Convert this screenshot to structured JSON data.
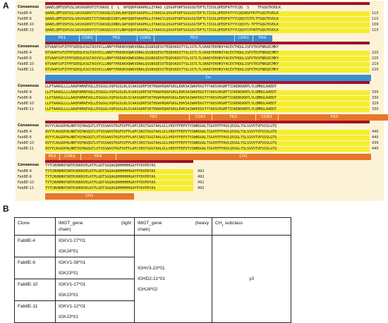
{
  "panelA": {
    "label": "A",
    "consensus_label": "Consensus",
    "blocks": [
      {
        "consensus_seq": "QAAELQMTQSPSSLSASVGDRVTITCRASQ I  L  WYQQKPGKAPKLLIYAAS LQSGVPSRFSGSGSGTDFTLTISSLQPEDFATYYCQQ  S    TFGQGTKVDLK",
        "rows": [
          {
            "name": "Fab8E-4",
            "seq": "QAAELQMTQSPSSLSASVGDRVTITCRASQGISSWLAWYQQKPGKAPKLLIYAASSLQSGVPSRFSGSGSGTDFTLTISSLQPEDFATYYCQQSNSFPRTFGQGTKVDLK",
            "num": "110"
          },
          {
            "name": "Fab8E-6",
            "seq": "QAAELQMTQSPSSLSASVGDRITITCRASQDISNYLAWYQQKPGKAPKLLIYAASTLQSGVPSRFSGSGSGTDFTLTISSLQPEDFATYYCQQSYSTPLTFGQGTKVDLK",
            "num": "110"
          },
          {
            "name": "Fab8E-10",
            "seq": "QAAELQMTQSPSSLSASVGDRVTITCRASQGIRNDLGWYQQKPGKAPKLLIYAASSLQSGVPSRFSGSGSGTDFTLTISSLQPEDFATYYCQQSYS-TPTFGQGTKVDLK",
            "num": "109"
          },
          {
            "name": "Fab8E-11",
            "seq": "QAAELQMTQSPSSLSASVGDRVTITCRASQSISSYLNWYQQKPGKAPKLLIYAASSLQSGVPSRFSGSGSGTDFTLTISSLQPEDFATYYCQQSYSTPWTFGQGTKVDLK",
            "num": "110"
          }
        ],
        "regions": [
          {
            "label": "FR1",
            "color": "blue"
          },
          {
            "label": "CDR1",
            "color": "blue"
          },
          {
            "label": "FR2",
            "color": "blue"
          },
          {
            "label": "CDR2",
            "color": "blue"
          },
          {
            "label": "FR3",
            "color": "blue"
          },
          {
            "label": "CDR3",
            "color": "blue"
          },
          {
            "label": "FR4",
            "color": "blue"
          }
        ]
      },
      {
        "consensus_seq": "RTVAAPSVFIFPPSDEQLKSGTASVVCLLNNFYPREAKVQWKVDNALQSGNSQESVTEQDSKDSTYSLSSTLTLSKADYEKHKVYACEVTHQGLSSPVTKSFNRGECMKY",
        "rows": [
          {
            "name": "Fab8E-4",
            "seq": "RTVAAPSVFIFPPSDEQLKSGTASVVCLLNNFYPREAKVQWKVDNALQSGNSQESVTEQDSKDSTYSLSSTLTLSKADYEKHKVYACEVTHQGLSSPVTKSFNRGECMKY",
            "num": "220"
          },
          {
            "name": "Fab8E-6",
            "seq": "RTVAAPSVFIFPPSDEQLKSGTASVVCLLNNFYPREAKVQWKVDNALQSGNSQESVTEQDSKDSTYSLSSTLTLSKADYEKHKVYACEVTHQGLSSPVTKSFNRGECMKY",
            "num": "220"
          },
          {
            "name": "Fab8E-10",
            "seq": "RTVAAPSVFIFPPSDEQLKSGTASVVCLLNNFYPREAKVQWKVDNALQSGNSQESVTEQDSKDSTYSLSSTLTLSKADYEKHKVYACEVTHQGLSSPVTKSFNRGECMKY",
            "num": "219"
          },
          {
            "name": "Fab8E-11",
            "seq": "RTVAAPSVFIFPPSDEQLKSGTASVVCLLNNFYPREAKVQWKVDNALQSGNSQESVTEQDSKDSTYSLSSTLTLSKADYEKHKVYACEVTHQGLSSPVTKSFNRGECMKY",
            "num": "220"
          }
        ],
        "regions": [
          {
            "label": "Cκ",
            "color": "blue"
          }
        ]
      },
      {
        "consensus_seq": "LLPTAAAGLLLLAAQPAMAEVQLLESGGGLVQPGGSLRLSCAASGDRFSKTHGWVRQAPGKGLEWVSAIWAPDGSTYYADSVKGRFTISRDNSKNTLYLQMNSLRAEDT",
        "rows": [
          {
            "name": "Fab8E-4",
            "seq": "LLPTAAAGLLLLAAQPAMAEVQLLESGGGLVQPGGSLRLSCAASGDRFSKTHGWVRQAPGKGLEWVSAIWAPDGSTYYADSVKGRFTISRDNSKNTLYLQMNSLRAEDT",
            "num": "330"
          },
          {
            "name": "Fab8E-6",
            "seq": "LLPTAAAGLLLLAAQPAMAEVQLLESGGGLVQPGGSLRLSCAASGDRFSKTHGWVRQAPGKGLEWVSAIWAPDGSTYYADSVKGRFTISRDNSKNTLYLQMNSLRAEDT",
            "num": "330"
          },
          {
            "name": "Fab8E-10",
            "seq": "LLPTAAAGLLLLAAQPAMAEVQLLESGGGLVQPGGSLRLSCAASGDRFSKTHGWVRQAPGKGLEWVSAIWAPDGSTYYADSVKGRFTISRDNSKNTLYLQMNSLRAEDT",
            "num": "329"
          },
          {
            "name": "Fab8E-11",
            "seq": "LLPTAAAGLLLLAAQPAMAEVQLLESGGGLVQPGGSLRLSCAASGDRFSKTHGWVRQAPGKGLEWVSAIWAPDGSTYYADSVKGRFTISRDNSKNTLYLQMNSLRAEDT",
            "num": "330"
          }
        ],
        "regions": [
          {
            "label": "FR1",
            "color": "orange"
          },
          {
            "label": "CDR1",
            "color": "orange"
          },
          {
            "label": "FR2",
            "color": "orange"
          },
          {
            "label": "CDR2",
            "color": "orange"
          },
          {
            "label": "FR3",
            "color": "orange"
          }
        ]
      },
      {
        "consensus_seq": "AVYYCAGGDPALNNTVQYWGQGTLVTVSSAASTKGPSVFPLAPCSRSTSGGTAALGCLVKDYFPEPVTVSWNSGALTSGVHTFPAVLQSSGLYSLSSVVTVPSSSLGTQ",
        "rows": [
          {
            "name": "Fab8E-4",
            "seq": "AVYYCAGGDPALNNTVQYWGQGTLVTVSSAASTKGPSVFPLAPCSRSTSGGTAALGCLVKDYFPEPVTVSWNSGALTSGVHTFPAVLQSSGLYSLSSVVTVPSSSLGTQ",
            "num": "440"
          },
          {
            "name": "Fab8E-6",
            "seq": "AVYYCAGGDPALNNTVQYWGQGTLVTVSSAASTKGPSVFPLAPCSRSTSGGTAALGCLVKDYFPEPVTVSWNSGALTSGVHTFPAVLQSSGLYSLSSVVTVPSSSLGTQ",
            "num": "440"
          },
          {
            "name": "Fab8E-10",
            "seq": "AVYYCAGGDPALNNTVQYWGQGTLVTVSSAASTKGPSVFPLAPCSRSTSGGTAALGCLVKDYFPEPVTVSWNSGALTSGVHTFPAVLQSSGLYSLSSVVTVPSSSLGTQ",
            "num": "439"
          },
          {
            "name": "Fab8E-11",
            "seq": "AVYYCAGGDPALNNTVQYWGQGTLVTVSSAASTKGPSVFPLAPCSRSTSGGTAALGCLVKDYFPEPVTVSWNSGALTSGVHTFPAVLQSSGLYSLSSVVTVPSSSLGTQ",
            "num": "440"
          }
        ],
        "regions": [
          {
            "label": "FR3",
            "color": "orange"
          },
          {
            "label": "CDR3",
            "color": "orange"
          },
          {
            "label": "FR4",
            "color": "orange"
          },
          {
            "label": "CH1",
            "color": "orange"
          }
        ]
      },
      {
        "consensus_seq": "TYTCNVNHKPSNTKVDKRVELKTPLGDTSGQAGQHHHHHHGAYPYDVPDYAS",
        "rows": [
          {
            "name": "Fab8E-4",
            "seq": "TYTCNVNHKPSNTKVDKRVELKTPLGDTSGQAGQHHHHHHGAYPYDVPDYAS",
            "num": "492"
          },
          {
            "name": "Fab8E-6",
            "seq": "TYTCNVNHKPSNTKVDKRVELKTPLGDTSGQAGQHHHHHHGAYPYDVPDYAS",
            "num": "492"
          },
          {
            "name": "Fab8E-10",
            "seq": "TYTCNVNHKPSNTKVDKRVELKTPLGDTSGQAGQHHHHHHGAYPYDVPDYAS",
            "num": "491"
          },
          {
            "name": "Fab8E-11",
            "seq": "TYTCNVNHKPSNTKVDKRVELKTPLGDTSGQAGQHHHHHHGAYPYDVPDYAS",
            "num": "492"
          }
        ],
        "regions": [
          {
            "label": "CH1",
            "color": "orange"
          }
        ]
      }
    ]
  },
  "panelB": {
    "label": "B",
    "headers": {
      "clone": "Clone",
      "light_a": "IMGT_gene",
      "light_b": "(light",
      "light_c": "chain)",
      "heavy_a": "IMGT_gene",
      "heavy_b": "(heavy",
      "heavy_c": "chain)",
      "subclass_main": "CH",
      "subclass_sub": "1",
      "subclass_rest": " subclass"
    },
    "rows": [
      {
        "clone": "Fab8E-4",
        "v": "IGKV1-27*01",
        "j": "IGKJ4*01"
      },
      {
        "clone": "Fab8E-6",
        "v": "IGKV1-39*01",
        "j": "IGKJ3*01"
      },
      {
        "clone": "Fab8E-10",
        "v": "IGKV1-17*01",
        "j": "IGKJ3*01"
      },
      {
        "clone": "Fab8E-11",
        "v": "IGKV1-12*01",
        "j": "IGKJ3*01"
      }
    ],
    "heavy": {
      "v": "IGHV3-23*01",
      "d": "IGHD2-21*01",
      "j": "IGHJ4*02"
    },
    "subclass": "γ3"
  }
}
